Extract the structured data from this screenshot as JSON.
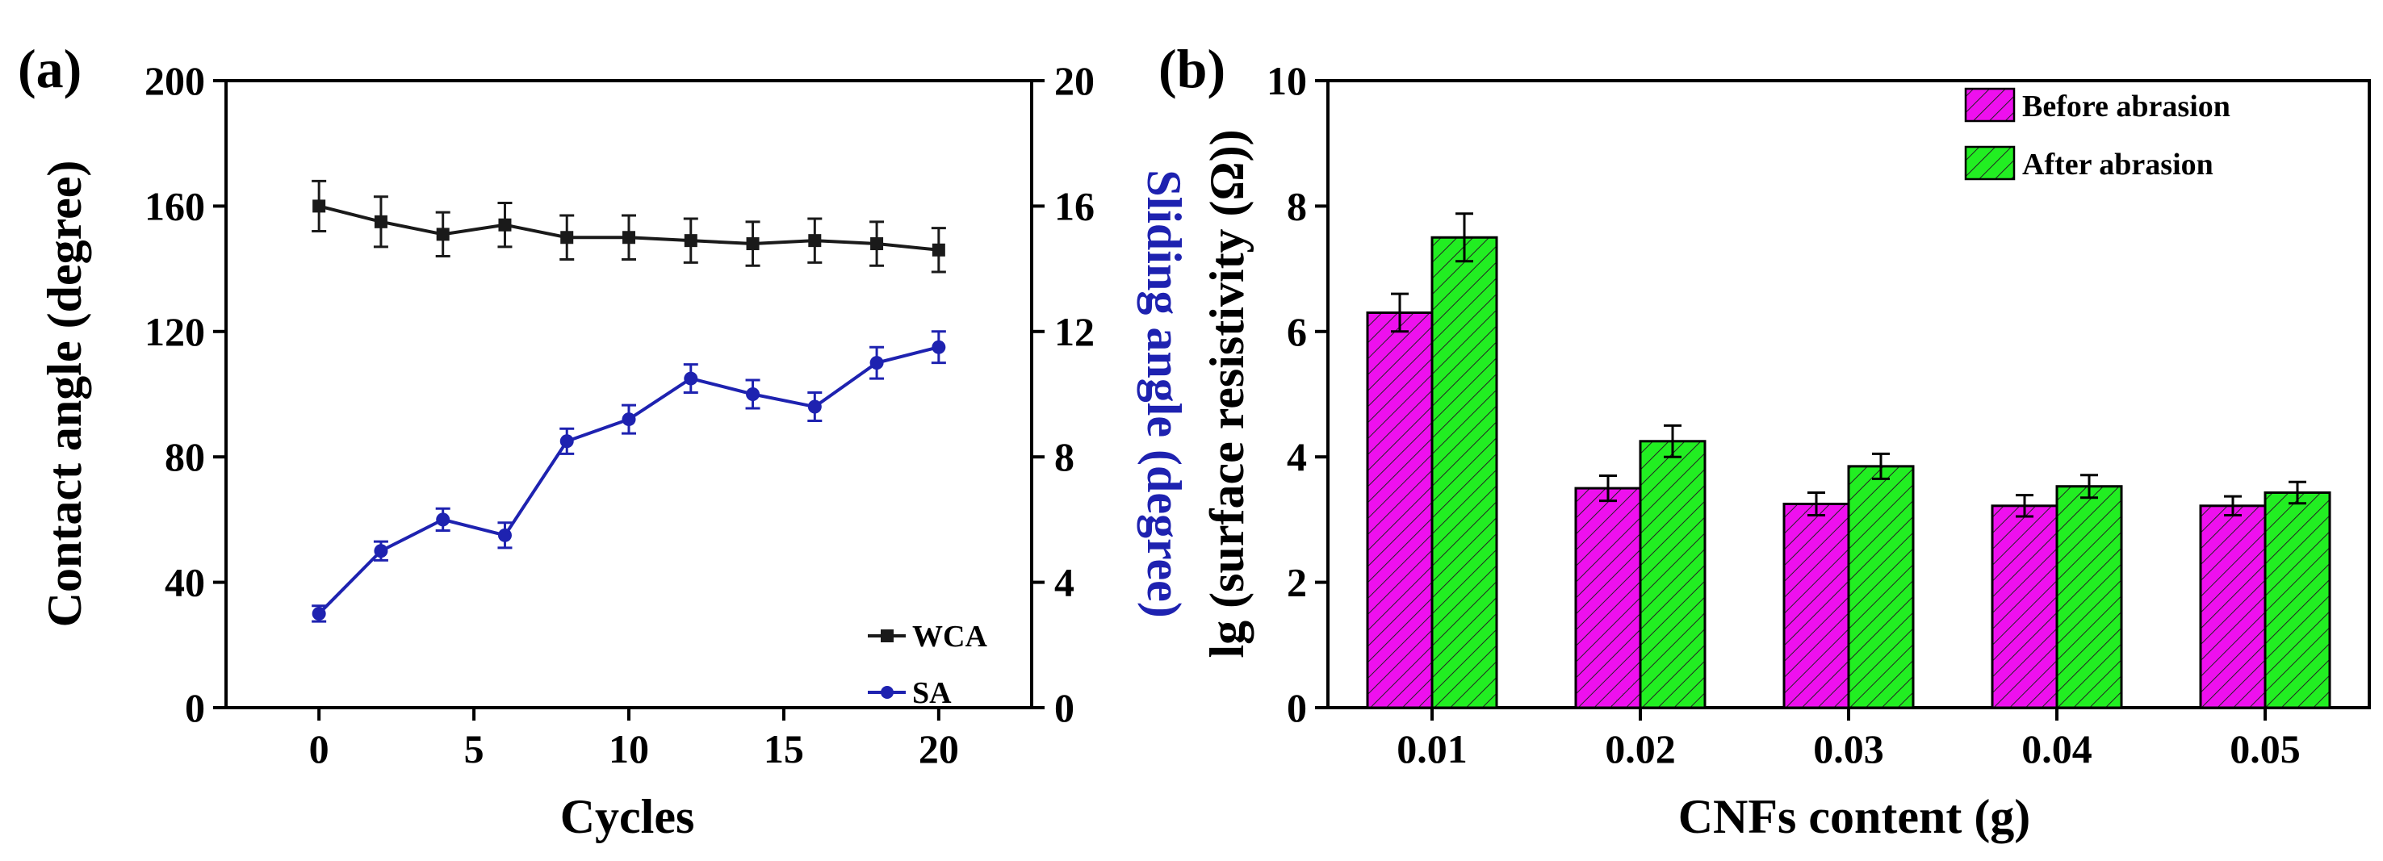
{
  "chart_data": [
    {
      "panel_label": "(a)",
      "type": "line",
      "xlabel": "Cycles",
      "ylabel": "Contact angle (degree)",
      "y2label": "Sliding angle (degree)",
      "xlim": [
        -3,
        23
      ],
      "ylim": [
        0,
        200
      ],
      "y2lim": [
        0,
        20
      ],
      "xticks": [
        0,
        5,
        10,
        15,
        20
      ],
      "yticks": [
        0,
        40,
        80,
        120,
        160,
        200
      ],
      "y2ticks": [
        0,
        4,
        8,
        12,
        16,
        20
      ],
      "legend_position": "bottom-right",
      "series": [
        {
          "name": "WCA",
          "axis": "left",
          "color": "#1a1a1a",
          "marker": "square",
          "x": [
            0,
            2,
            4,
            6,
            8,
            10,
            12,
            14,
            16,
            18,
            20
          ],
          "values": [
            160,
            155,
            151,
            154,
            150,
            150,
            149,
            148,
            149,
            148,
            146
          ],
          "errors": [
            8,
            8,
            7,
            7,
            7,
            7,
            7,
            7,
            7,
            7,
            7
          ]
        },
        {
          "name": "SA",
          "axis": "right",
          "color": "#1e22b0",
          "marker": "circle",
          "x": [
            0,
            2,
            4,
            6,
            8,
            10,
            12,
            14,
            16,
            18,
            20
          ],
          "values": [
            3.0,
            5.0,
            6.0,
            5.5,
            8.5,
            9.2,
            10.5,
            10.0,
            9.6,
            11.0,
            11.5
          ],
          "errors": [
            0.25,
            0.3,
            0.35,
            0.4,
            0.4,
            0.45,
            0.45,
            0.45,
            0.45,
            0.5,
            0.5
          ]
        }
      ]
    },
    {
      "panel_label": "(b)",
      "type": "bar",
      "xlabel": "CNFs content (g)",
      "ylabel": "lg (surface resistivity (Ω))",
      "ylim": [
        0,
        10
      ],
      "yticks": [
        0,
        2,
        4,
        6,
        8,
        10
      ],
      "categories": [
        "0.01",
        "0.02",
        "0.03",
        "0.04",
        "0.05"
      ],
      "legend_position": "top-right",
      "series": [
        {
          "name": "Before abrasion",
          "color": "#ee10ee",
          "values": [
            6.3,
            3.5,
            3.25,
            3.22,
            3.22
          ],
          "errors": [
            0.3,
            0.2,
            0.18,
            0.17,
            0.15
          ]
        },
        {
          "name": "After abrasion",
          "color": "#22ee22",
          "values": [
            7.5,
            4.25,
            3.85,
            3.53,
            3.43
          ],
          "errors": [
            0.38,
            0.25,
            0.2,
            0.18,
            0.17
          ]
        }
      ]
    }
  ]
}
